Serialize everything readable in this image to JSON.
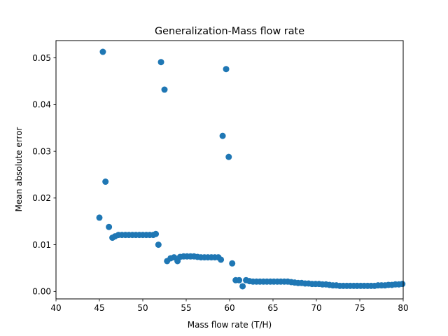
{
  "chart_data": {
    "type": "scatter",
    "title": "Generalization-Mass flow rate",
    "xlabel": "Mass flow rate (T/H)",
    "ylabel": "Mean absolute error",
    "xlim": [
      40,
      80
    ],
    "ylim": [
      -0.0016,
      0.0537
    ],
    "xticks": [
      40,
      45,
      50,
      55,
      60,
      65,
      70,
      75,
      80
    ],
    "xtick_labels": [
      "40",
      "45",
      "50",
      "55",
      "60",
      "65",
      "70",
      "75",
      "80"
    ],
    "yticks": [
      0.0,
      0.01,
      0.02,
      0.03,
      0.04,
      0.05
    ],
    "ytick_labels": [
      "0.00",
      "0.01",
      "0.02",
      "0.03",
      "0.04",
      "0.05"
    ],
    "grid": false,
    "marker_color": "#1f77b4",
    "points": [
      [
        45.0,
        0.0158
      ],
      [
        45.4,
        0.0513
      ],
      [
        45.7,
        0.0235
      ],
      [
        46.1,
        0.0138
      ],
      [
        46.5,
        0.0115
      ],
      [
        46.8,
        0.0118
      ],
      [
        47.2,
        0.0121
      ],
      [
        47.6,
        0.0121
      ],
      [
        48.0,
        0.0121
      ],
      [
        48.4,
        0.0121
      ],
      [
        48.8,
        0.0121
      ],
      [
        49.2,
        0.0121
      ],
      [
        49.6,
        0.0121
      ],
      [
        50.0,
        0.0121
      ],
      [
        50.4,
        0.0121
      ],
      [
        50.8,
        0.0121
      ],
      [
        51.2,
        0.0121
      ],
      [
        51.5,
        0.0123
      ],
      [
        51.8,
        0.01
      ],
      [
        52.1,
        0.0491
      ],
      [
        52.5,
        0.0432
      ],
      [
        52.8,
        0.0065
      ],
      [
        53.2,
        0.0071
      ],
      [
        53.6,
        0.0073
      ],
      [
        54.0,
        0.0065
      ],
      [
        54.3,
        0.0074
      ],
      [
        54.7,
        0.0075
      ],
      [
        55.1,
        0.0075
      ],
      [
        55.5,
        0.0075
      ],
      [
        55.9,
        0.0075
      ],
      [
        56.3,
        0.0074
      ],
      [
        56.7,
        0.0073
      ],
      [
        57.1,
        0.0073
      ],
      [
        57.5,
        0.0073
      ],
      [
        57.9,
        0.0073
      ],
      [
        58.3,
        0.0073
      ],
      [
        58.7,
        0.0073
      ],
      [
        59.0,
        0.0068
      ],
      [
        59.2,
        0.0333
      ],
      [
        59.6,
        0.0476
      ],
      [
        59.9,
        0.0288
      ],
      [
        60.3,
        0.006
      ],
      [
        60.7,
        0.0024
      ],
      [
        61.1,
        0.0024
      ],
      [
        61.5,
        0.0011
      ],
      [
        61.9,
        0.0024
      ],
      [
        62.3,
        0.0022
      ],
      [
        62.7,
        0.0021
      ],
      [
        63.1,
        0.0021
      ],
      [
        63.5,
        0.0021
      ],
      [
        63.9,
        0.0021
      ],
      [
        64.3,
        0.0021
      ],
      [
        64.7,
        0.0021
      ],
      [
        65.1,
        0.0021
      ],
      [
        65.5,
        0.0021
      ],
      [
        65.9,
        0.0021
      ],
      [
        66.3,
        0.0021
      ],
      [
        66.7,
        0.0021
      ],
      [
        67.1,
        0.002
      ],
      [
        67.5,
        0.0019
      ],
      [
        67.9,
        0.0018
      ],
      [
        68.3,
        0.0018
      ],
      [
        68.7,
        0.0017
      ],
      [
        69.1,
        0.0017
      ],
      [
        69.5,
        0.0016
      ],
      [
        69.9,
        0.0016
      ],
      [
        70.3,
        0.0016
      ],
      [
        70.7,
        0.0015
      ],
      [
        71.1,
        0.0015
      ],
      [
        71.5,
        0.0014
      ],
      [
        71.9,
        0.0013
      ],
      [
        72.3,
        0.0013
      ],
      [
        72.7,
        0.0012
      ],
      [
        73.1,
        0.0012
      ],
      [
        73.5,
        0.0012
      ],
      [
        73.9,
        0.0012
      ],
      [
        74.3,
        0.0012
      ],
      [
        74.7,
        0.0012
      ],
      [
        75.1,
        0.0012
      ],
      [
        75.5,
        0.0012
      ],
      [
        75.9,
        0.0012
      ],
      [
        76.3,
        0.0012
      ],
      [
        76.7,
        0.0012
      ],
      [
        77.1,
        0.0013
      ],
      [
        77.5,
        0.0013
      ],
      [
        77.9,
        0.0013
      ],
      [
        78.3,
        0.0014
      ],
      [
        78.7,
        0.0014
      ],
      [
        79.1,
        0.0015
      ],
      [
        79.5,
        0.0015
      ],
      [
        79.9,
        0.0016
      ]
    ]
  }
}
